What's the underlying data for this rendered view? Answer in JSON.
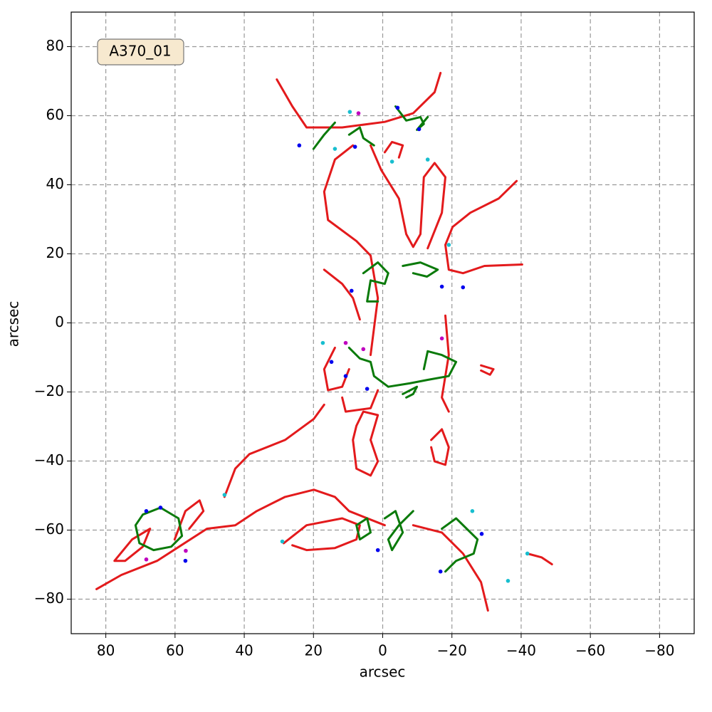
{
  "chart_data": {
    "type": "line",
    "annotation": "A370_01",
    "xlabel": "arcsec",
    "ylabel": "arcsec",
    "xlim": [
      90,
      -90
    ],
    "ylim": [
      -90,
      90
    ],
    "grid": true,
    "xticks": [
      80,
      60,
      40,
      20,
      0,
      {
        "value": -20,
        "label": "−20"
      },
      {
        "value": -40,
        "label": "−40"
      },
      {
        "value": -60,
        "label": "−60"
      },
      {
        "value": -80,
        "label": "−80"
      }
    ],
    "yticks": [
      {
        "value": -80,
        "label": "−80"
      },
      {
        "value": -60,
        "label": "−60"
      },
      {
        "value": -40,
        "label": "−40"
      },
      {
        "value": -20,
        "label": "−20"
      },
      0,
      20,
      40,
      60,
      80
    ],
    "series": [
      {
        "color": "#e31a1c",
        "x": [
          30.6,
          26.1,
          22.0,
          11.7,
          -0.6,
          -8.8,
          -15.0,
          -16.7
        ],
        "y": [
          70.5,
          62.7,
          56.6,
          56.6,
          58.2,
          60.7,
          66.8,
          72.4
        ]
      },
      {
        "color": "#e31a1c",
        "x": [
          8.6,
          13.8,
          16.9,
          15.8,
          7.6,
          3.5,
          1.4,
          3.5
        ],
        "y": [
          51.4,
          47.3,
          38.0,
          29.8,
          23.7,
          19.5,
          7.2,
          -9.3
        ]
      },
      {
        "color": "#e31a1c",
        "x": [
          3.5,
          0.4,
          -4.7,
          -6.8,
          -8.8,
          -10.9,
          -11.9,
          -15.0,
          -18.1,
          -17.1,
          -13.0
        ],
        "y": [
          51.4,
          44.2,
          36.0,
          25.7,
          22.0,
          25.7,
          42.2,
          46.3,
          42.2,
          31.9,
          21.6
        ]
      },
      {
        "color": "#e31a1c",
        "x": [
          -38.7,
          -33.5,
          -25.3,
          -20.2,
          -18.1,
          -19.1,
          -23.2,
          -29.4,
          -40.3
        ],
        "y": [
          41.1,
          36.0,
          31.9,
          27.8,
          22.6,
          15.4,
          14.4,
          16.5,
          16.9
        ]
      },
      {
        "color": "#e31a1c",
        "x": [
          82.7,
          75.5,
          65.2,
          50.8,
          42.6,
          36.4,
          28.2,
          19.9,
          13.8,
          9.7,
          -0.6
        ],
        "y": [
          -77.1,
          -73.0,
          -68.9,
          -59.6,
          -58.6,
          -54.5,
          -50.4,
          -48.3,
          -50.4,
          -54.5,
          -58.6
        ]
      },
      {
        "color": "#e31a1c",
        "x": [
          45.7,
          42.6,
          38.5,
          28.2,
          19.9,
          16.9
        ],
        "y": [
          -50.4,
          -42.2,
          -38.0,
          -33.9,
          -27.8,
          -23.7
        ]
      },
      {
        "color": "#e31a1c",
        "x": [
          28.6,
          22.0,
          11.7,
          6.6,
          7.6,
          13.8,
          22.0,
          26.1
        ],
        "y": [
          -63.8,
          -58.6,
          -56.6,
          -58.6,
          -62.7,
          -65.2,
          -65.8,
          -64.4
        ]
      },
      {
        "color": "#e31a1c",
        "x": [
          -8.8,
          -17.1,
          -23.2,
          -28.4,
          -30.4
        ],
        "y": [
          -58.6,
          -60.7,
          -66.8,
          -75.1,
          -83.3
        ]
      },
      {
        "color": "#e31a1c",
        "x": [
          7.6,
          5.6,
          1.4,
          3.5,
          1.4,
          3.5,
          7.6,
          8.6,
          7.6
        ],
        "y": [
          -29.8,
          -25.7,
          -26.7,
          -33.9,
          -40.1,
          -44.2,
          -42.2,
          -33.9,
          -29.8
        ]
      },
      {
        "color": "#e31a1c",
        "x": [
          -18.1,
          -19.1,
          -17.1,
          -19.1
        ],
        "y": [
          2.1,
          -9.3,
          -21.6,
          -25.7
        ]
      },
      {
        "color": "#e31a1c",
        "x": [
          -14.0,
          -17.1,
          -19.1,
          -18.1,
          -15.0,
          -14.0
        ],
        "y": [
          -33.9,
          -30.8,
          -36.0,
          -41.1,
          -40.1,
          -36.0
        ]
      },
      {
        "color": "#e31a1c",
        "x": [
          77.5,
          72.4,
          67.2,
          69.3,
          74.4,
          77.5
        ],
        "y": [
          -68.9,
          -62.7,
          -59.6,
          -64.8,
          -68.9,
          -68.9
        ]
      },
      {
        "color": "#e31a1c",
        "x": [
          60.1,
          57.0,
          52.9,
          51.8,
          55.9
        ],
        "y": [
          -62.7,
          -54.5,
          -51.4,
          -54.5,
          -59.6
        ]
      },
      {
        "color": "#e31a1c",
        "x": [
          -0.6,
          -2.7,
          -5.8,
          -4.7
        ],
        "y": [
          49.4,
          52.4,
          51.4,
          47.9
        ]
      },
      {
        "color": "#e31a1c",
        "x": [
          16.9,
          11.7,
          8.6,
          6.6
        ],
        "y": [
          15.4,
          11.3,
          7.2,
          1.0
        ]
      },
      {
        "color": "#e31a1c",
        "x": [
          13.8,
          16.9,
          15.8,
          11.7,
          9.7
        ],
        "y": [
          -7.2,
          -13.4,
          -19.5,
          -18.5,
          -13.4
        ]
      },
      {
        "color": "#e31a1c",
        "x": [
          11.7,
          10.7,
          3.5,
          1.4
        ],
        "y": [
          -21.6,
          -25.7,
          -24.7,
          -19.5
        ]
      },
      {
        "color": "#e31a1c",
        "x": [
          -41.8,
          -45.9,
          -48.9
        ],
        "y": [
          -66.8,
          -67.9,
          -69.9
        ]
      },
      {
        "color": "#e31a1c",
        "x": [
          -28.4,
          -32.0,
          -31.0,
          -28.4
        ],
        "y": [
          -12.3,
          -13.4,
          -15.0,
          -13.8
        ]
      },
      {
        "color": "#0a7a0a",
        "x": [
          20.0,
          16.9,
          13.8
        ],
        "y": [
          50.4,
          54.5,
          58.0
        ]
      },
      {
        "color": "#0a7a0a",
        "x": [
          9.7,
          6.6,
          5.6,
          2.5
        ],
        "y": [
          54.5,
          56.6,
          53.5,
          51.4
        ]
      },
      {
        "color": "#0a7a0a",
        "x": [
          -3.7,
          -6.8,
          -10.9,
          -11.9,
          -9.9,
          -13.0
        ],
        "y": [
          62.7,
          58.6,
          59.6,
          57.6,
          55.9,
          59.6
        ]
      },
      {
        "color": "#0a7a0a",
        "x": [
          5.6,
          1.4,
          -1.6,
          -0.6,
          3.5,
          4.5,
          1.4
        ],
        "y": [
          14.4,
          17.5,
          14.4,
          11.3,
          12.3,
          6.2,
          6.2
        ]
      },
      {
        "color": "#0a7a0a",
        "x": [
          -5.8,
          -10.9,
          -15.9,
          -12.8,
          -8.8
        ],
        "y": [
          16.5,
          17.5,
          15.4,
          13.4,
          14.4
        ]
      },
      {
        "color": "#0a7a0a",
        "x": [
          9.7,
          6.6,
          3.5,
          2.5,
          -1.6,
          -7.8,
          -13.0,
          -19.1,
          -21.2,
          -17.1,
          -13.0,
          -11.9
        ],
        "y": [
          -7.2,
          -10.3,
          -11.3,
          -15.4,
          -18.5,
          -17.5,
          -16.5,
          -15.4,
          -11.3,
          -9.3,
          -8.2,
          -13.4
        ]
      },
      {
        "color": "#0a7a0a",
        "x": [
          -5.8,
          -9.9,
          -8.8,
          -6.8
        ],
        "y": [
          -20.6,
          -18.5,
          -20.6,
          -21.6
        ]
      },
      {
        "color": "#0a7a0a",
        "x": [
          71.4,
          69.3,
          64.2,
          59.0,
          58.0,
          61.1,
          66.2,
          70.3,
          71.4
        ],
        "y": [
          -58.6,
          -55.5,
          -53.5,
          -56.6,
          -61.7,
          -64.8,
          -65.8,
          -63.8,
          -58.6
        ]
      },
      {
        "color": "#0a7a0a",
        "x": [
          7.6,
          4.5,
          3.5,
          6.6,
          7.6
        ],
        "y": [
          -58.6,
          -56.6,
          -60.7,
          -62.7,
          -58.6
        ]
      },
      {
        "color": "#0a7a0a",
        "x": [
          -0.6,
          -3.7,
          -5.8,
          -2.7,
          -1.6,
          -4.7,
          -8.8
        ],
        "y": [
          -56.6,
          -54.5,
          -60.7,
          -65.8,
          -62.7,
          -58.6,
          -54.5
        ]
      },
      {
        "color": "#0a7a0a",
        "x": [
          -17.1,
          -21.2,
          -27.4,
          -26.3,
          -21.2,
          -18.1
        ],
        "y": [
          -59.6,
          -56.6,
          -62.7,
          -66.8,
          -68.9,
          -72.0
        ]
      }
    ],
    "points": [
      {
        "color": "#17becf",
        "x": [
          9.5,
          13.8,
          -19.1,
          -13.0,
          -2.7,
          17.3,
          -41.8,
          -36.2,
          -25.9,
          45.7,
          29.0
        ],
        "y": [
          61.1,
          50.4,
          22.6,
          47.3,
          46.7,
          -5.8,
          -66.8,
          -74.7,
          -54.5,
          -49.8,
          -63.3
        ]
      },
      {
        "color": "#0000ee",
        "x": [
          24.1,
          8.0,
          -4.3,
          -10.5,
          9.0,
          -17.1,
          -23.2,
          14.8,
          10.7,
          4.5,
          68.3,
          64.2,
          57.0,
          1.4,
          -16.7,
          -28.6
        ],
        "y": [
          51.4,
          51.0,
          62.3,
          56.1,
          9.3,
          10.5,
          10.3,
          -11.3,
          -15.4,
          -19.1,
          -54.5,
          -53.5,
          -68.9,
          -65.8,
          -72.0,
          -61.1
        ]
      },
      {
        "color": "#bf00bf",
        "x": [
          7.0,
          10.7,
          5.6,
          -17.1,
          56.9,
          68.3
        ],
        "y": [
          60.7,
          -5.8,
          -7.6,
          -4.5,
          -66.0,
          -68.5
        ]
      }
    ]
  }
}
